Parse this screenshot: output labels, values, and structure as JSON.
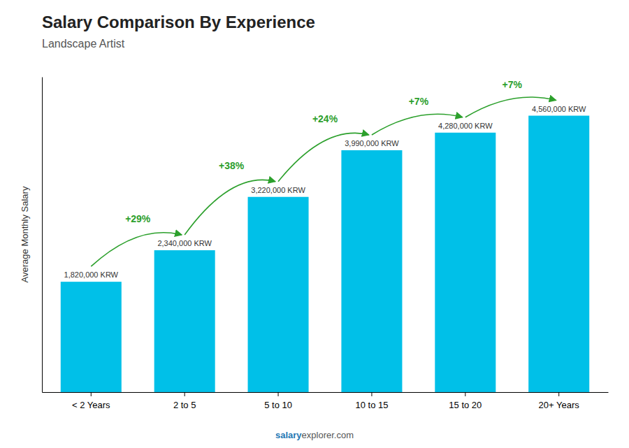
{
  "chart_data": {
    "type": "bar",
    "title": "Salary Comparison By Experience",
    "subtitle": "Landscape Artist",
    "categories": [
      "< 2 Years",
      "2 to 5",
      "5 to 10",
      "10 to 15",
      "15 to 20",
      "20+ Years"
    ],
    "values": [
      1820000,
      2340000,
      3220000,
      3990000,
      4280000,
      4560000
    ],
    "value_labels": [
      "1,820,000 KRW",
      "2,340,000 KRW",
      "3,220,000 KRW",
      "3,990,000 KRW",
      "4,280,000 KRW",
      "4,560,000 KRW"
    ],
    "data_labels": true,
    "annotations": [
      "+29%",
      "+38%",
      "+24%",
      "+7%",
      "+7%"
    ],
    "ylabel": "Average Monthly Salary",
    "footer": [
      "salary",
      "explorer.com"
    ],
    "color": "#00c0e8",
    "ylim": [
      0,
      5200000
    ],
    "tick_labels": "x",
    "grid": false
  }
}
